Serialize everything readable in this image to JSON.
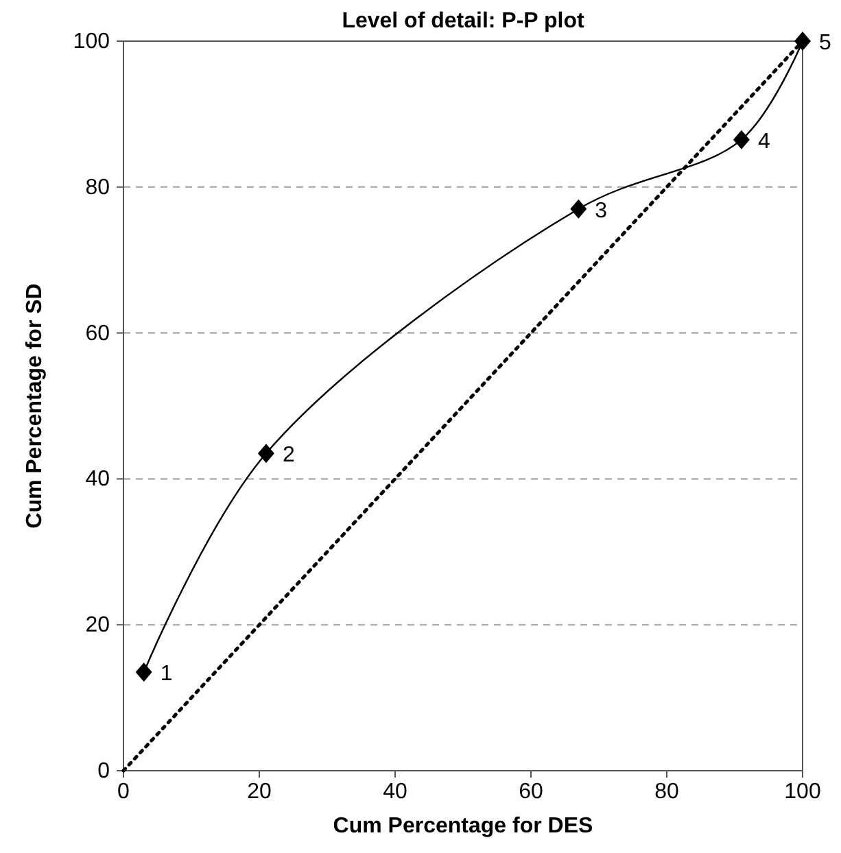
{
  "chart_data": {
    "type": "line",
    "title": "Level of detail: P-P plot",
    "xlabel": "Cum Percentage for DES",
    "ylabel": "Cum Percentage for SD",
    "x": [
      3,
      21,
      67,
      91,
      100
    ],
    "series": [
      {
        "color": "#000000",
        "values": [
          13.5,
          43.5,
          77,
          86.5,
          100
        ],
        "marker": "diamond",
        "line_style": "solid"
      },
      {
        "color": "#000000",
        "x": [
          0,
          100
        ],
        "values": [
          0,
          100
        ],
        "marker": "none",
        "line_style": "dotted"
      }
    ],
    "xlim": [
      0,
      100
    ],
    "ylim": [
      0,
      100
    ],
    "xticks": [
      0,
      20,
      40,
      60,
      80,
      100
    ],
    "yticks": [
      0,
      20,
      40,
      60,
      80,
      100
    ],
    "grid": "y",
    "annotations": [
      {
        "text": "1",
        "x": 3,
        "y": 13.5
      },
      {
        "text": "2",
        "x": 21,
        "y": 43.5
      },
      {
        "text": "3",
        "x": 67,
        "y": 77
      },
      {
        "text": "4",
        "x": 91,
        "y": 86.5
      },
      {
        "text": "5",
        "x": 100,
        "y": 100
      }
    ]
  }
}
